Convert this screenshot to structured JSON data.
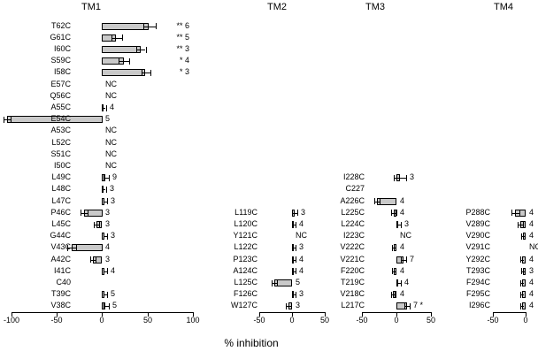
{
  "figure_title": "",
  "colors": {
    "bar_fill": "#c9c9c9",
    "bar_border": "#000000",
    "axis": "#000000"
  },
  "chart_data": {
    "type": "bar",
    "orientation": "horizontal",
    "xlabel": "% inhibition",
    "grid": false,
    "panels": [
      {
        "title": "TM1",
        "xlim": [
          -100,
          100
        ],
        "xticks": [
          -100,
          -50,
          0,
          50,
          100
        ],
        "categories": [
          "T62C",
          "G61C",
          "I60C",
          "S59C",
          "I58C",
          "E57C",
          "Q56C",
          "A55C",
          "E54C",
          "A53C",
          "L52C",
          "S51C",
          "I50C",
          "L49C",
          "L48C",
          "L47C",
          "P46C",
          "L45C",
          "G44C",
          "V43C",
          "A42C",
          "I41C",
          "C40",
          "T39C",
          "V38C"
        ],
        "values": [
          52,
          16,
          43,
          24,
          48,
          null,
          null,
          2,
          -105,
          null,
          null,
          null,
          null,
          4,
          2,
          3,
          -20,
          -6,
          3,
          -34,
          -10,
          3,
          null,
          3,
          4
        ],
        "errors": [
          7,
          6,
          5,
          6,
          5,
          null,
          null,
          2,
          4,
          null,
          null,
          null,
          null,
          3,
          2,
          2,
          4,
          3,
          2,
          5,
          3,
          2,
          null,
          2,
          3
        ],
        "annotations": [
          "** 6",
          "** 5",
          "** 3",
          "* 4",
          "* 3",
          "NC",
          "NC",
          "4",
          "5",
          "NC",
          "NC",
          "NC",
          "NC",
          "9",
          "3",
          "3",
          "3",
          "3",
          "3",
          "4",
          "3",
          "4",
          "",
          "5",
          "5"
        ]
      },
      {
        "title": "TM2",
        "xlim": [
          -50,
          50
        ],
        "xticks": [
          -50,
          0,
          50
        ],
        "categories": [
          "L119C",
          "L120C",
          "Y121C",
          "L122C",
          "P123C",
          "A124C",
          "L125C",
          "F126C",
          "W127C"
        ],
        "values": [
          4,
          3,
          null,
          3,
          3,
          3,
          -27,
          3,
          -6
        ],
        "errors": [
          4,
          3,
          null,
          3,
          3,
          3,
          4,
          3,
          4
        ],
        "annotations": [
          "3",
          "4",
          "NC",
          "3",
          "4",
          "4",
          "5",
          "3",
          "3"
        ]
      },
      {
        "title": "TM3",
        "xlim": [
          -50,
          50
        ],
        "xticks": [
          -50,
          0,
          50
        ],
        "categories": [
          "I228C",
          "C227",
          "A226C",
          "L225C",
          "L224C",
          "I223C",
          "V222C",
          "V221C",
          "F220C",
          "T219C",
          "V218C",
          "L217C"
        ],
        "values": [
          5,
          null,
          -28,
          -4,
          3,
          null,
          -4,
          10,
          -4,
          3,
          -5,
          15
        ],
        "errors": [
          9,
          null,
          4,
          4,
          3,
          null,
          3,
          4,
          3,
          3,
          3,
          4
        ],
        "annotations": [
          "3",
          "",
          "4",
          "4",
          "3",
          "NC",
          "4",
          "7",
          "4",
          "4",
          "4",
          "7 *"
        ]
      },
      {
        "title": "TM4",
        "xlim": [
          -50,
          0
        ],
        "xticks": [
          -50,
          0
        ],
        "categories": [
          "P288C",
          "V289C",
          "V290C",
          "V291C",
          "Y292C",
          "T293C",
          "F294C",
          "F295C",
          "I296C"
        ],
        "values": [
          -16,
          -8,
          -4,
          null,
          -5,
          -4,
          -5,
          -5,
          -5
        ],
        "errors": [
          6,
          4,
          3,
          null,
          3,
          3,
          3,
          3,
          3
        ],
        "annotations": [
          "4",
          "4",
          "4",
          "NC",
          "4",
          "3",
          "4",
          "4",
          "4"
        ]
      }
    ]
  }
}
